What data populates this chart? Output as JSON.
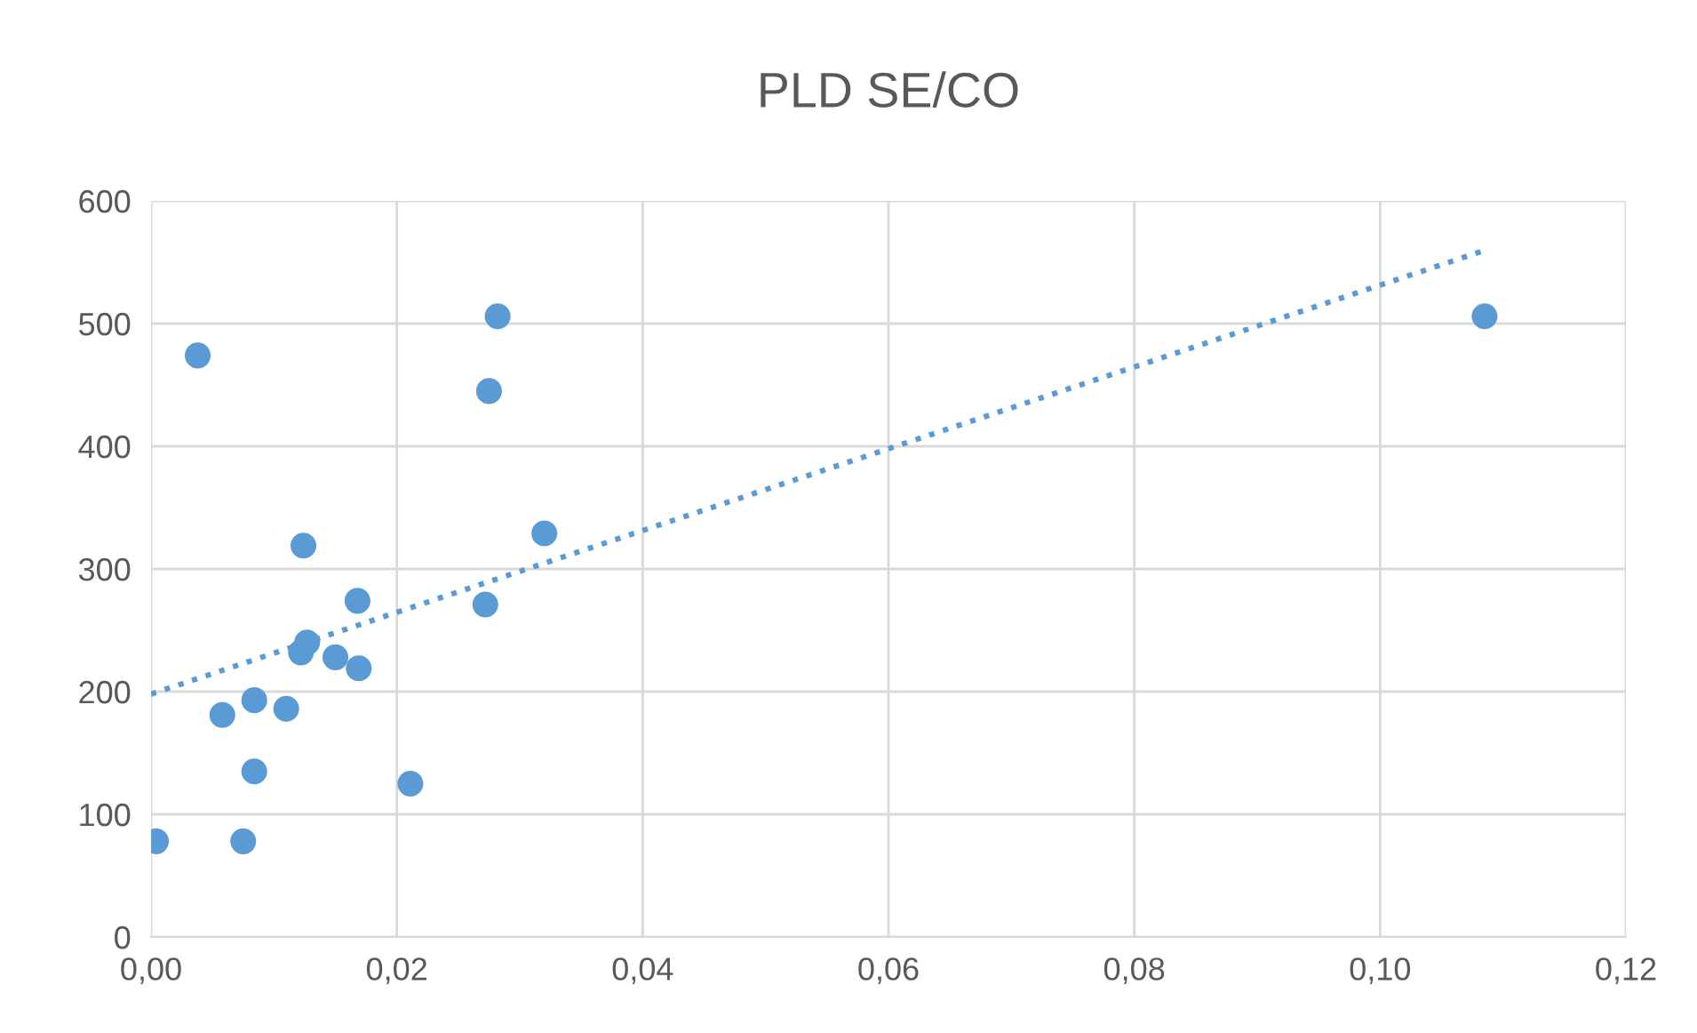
{
  "chart_data": {
    "type": "scatter",
    "title": "PLD SE/CO",
    "series": [
      {
        "color": "#5b9bd5",
        "marker": "circle",
        "x": [
          0.0004,
          0.0038,
          0.0058,
          0.0075,
          0.0084,
          0.0084,
          0.011,
          0.0124,
          0.0122,
          0.0127,
          0.015,
          0.0168,
          0.0169,
          0.0211,
          0.0272,
          0.0275,
          0.0282,
          0.032,
          0.1085
        ],
        "values": [
          78,
          474,
          181,
          78,
          193,
          135,
          186,
          319,
          232,
          240,
          228,
          274,
          219,
          125,
          271,
          445,
          506,
          329,
          506
        ]
      },
      {
        "type": "line",
        "color": "#5b9bd5",
        "line_style": "dotted",
        "marker": "none",
        "x": [
          0.0,
          0.1083
        ],
        "values": [
          198,
          559
        ]
      }
    ],
    "xlim": [
      0,
      0.12
    ],
    "xticks": [
      {
        "value": 0,
        "label": "0,00"
      },
      {
        "value": 0.02,
        "label": "0,02"
      },
      {
        "value": 0.04,
        "label": "0,04"
      },
      {
        "value": 0.06,
        "label": "0,06"
      },
      {
        "value": 0.08,
        "label": "0,08"
      },
      {
        "value": 0.1,
        "label": "0,10"
      },
      {
        "value": 0.12,
        "label": "0,12"
      }
    ],
    "ylim": [
      0,
      600
    ],
    "yticks": [
      0,
      100,
      200,
      300,
      400,
      500,
      600
    ],
    "grid": true
  }
}
